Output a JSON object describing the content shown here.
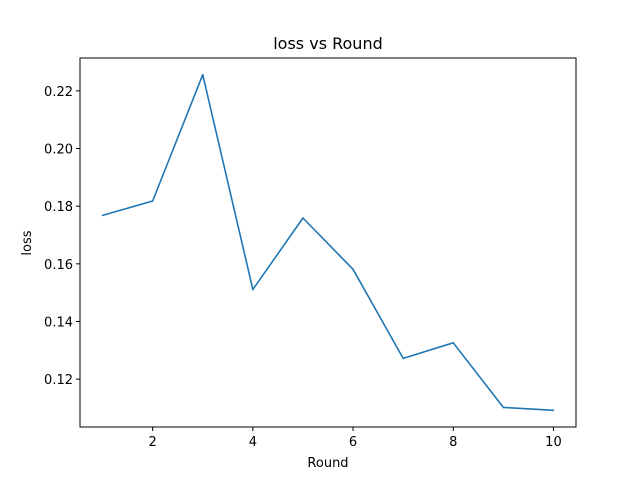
{
  "chart_data": {
    "type": "line",
    "title": "loss vs Round",
    "xlabel": "Round",
    "ylabel": "loss",
    "x": [
      1,
      2,
      3,
      4,
      5,
      6,
      7,
      8,
      9,
      10
    ],
    "series": [
      {
        "values": [
          0.1768,
          0.1818,
          0.2256,
          0.1511,
          0.1759,
          0.1581,
          0.1272,
          0.1326,
          0.1102,
          0.1092
        ],
        "color": "#1f77b4"
      }
    ],
    "xlim": [
      0.55,
      10.45
    ],
    "ylim": [
      0.1034,
      0.2314
    ],
    "xticks": [
      2,
      4,
      6,
      8,
      10
    ],
    "yticks": [
      0.12,
      0.14,
      0.16,
      0.18,
      0.2,
      0.22
    ],
    "ytick_labels": [
      "0.12",
      "0.14",
      "0.16",
      "0.18",
      "0.20",
      "0.22"
    ],
    "grid": false,
    "legend": "none"
  }
}
